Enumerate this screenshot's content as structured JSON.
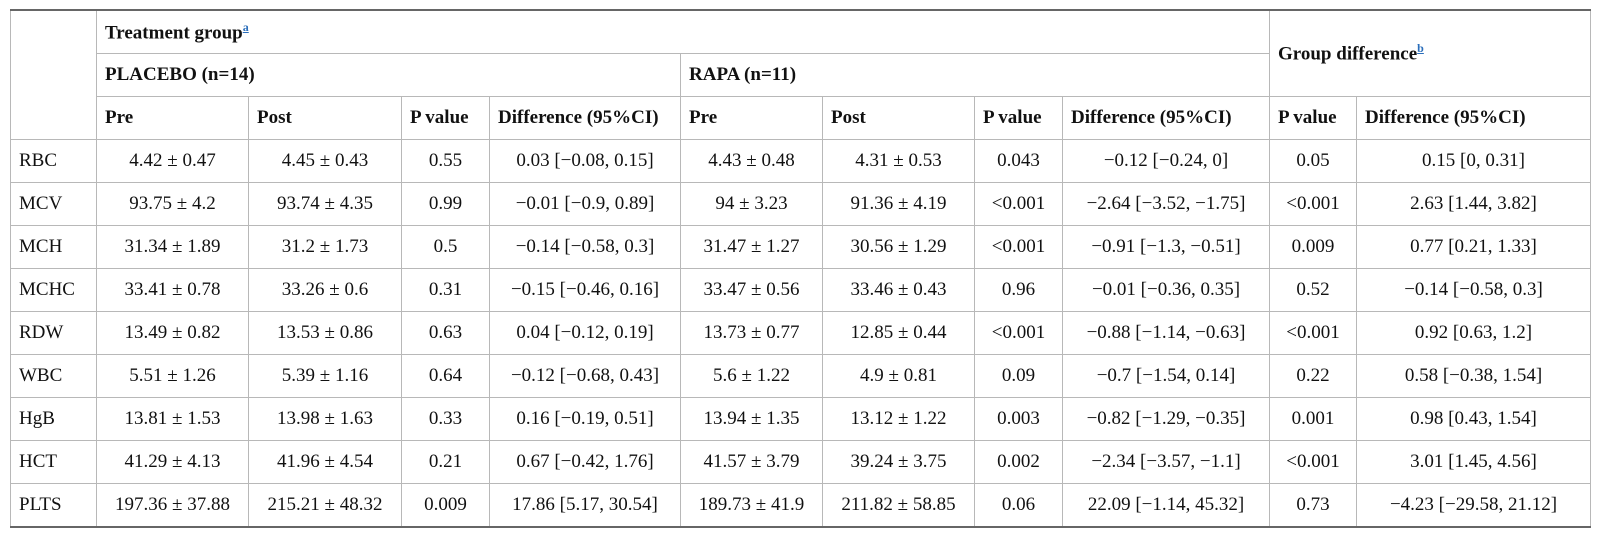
{
  "table": {
    "header": {
      "treatment_group": "Treatment group",
      "treatment_group_fn": "a",
      "group_difference": "Group difference",
      "group_difference_fn": "b",
      "placebo": "PLACEBO (n=14)",
      "rapa": "RAPA (n=11)",
      "columns": [
        "Pre",
        "Post",
        "P value",
        "Difference (95%CI)",
        "Pre",
        "Post",
        "P value",
        "Difference (95%CI)",
        "P value",
        "Difference (95%CI)"
      ]
    },
    "rows": [
      {
        "label": "RBC",
        "cells": [
          "4.42 ± 0.47",
          "4.45 ± 0.43",
          "0.55",
          "0.03 [−0.08, 0.15]",
          "4.43 ± 0.48",
          "4.31 ± 0.53",
          "0.043",
          "−0.12 [−0.24, 0]",
          "0.05",
          "0.15 [0, 0.31]"
        ]
      },
      {
        "label": "MCV",
        "cells": [
          "93.75 ± 4.2",
          "93.74 ± 4.35",
          "0.99",
          "−0.01 [−0.9, 0.89]",
          "94 ± 3.23",
          "91.36 ± 4.19",
          "<0.001",
          "−2.64 [−3.52, −1.75]",
          "<0.001",
          "2.63 [1.44, 3.82]"
        ]
      },
      {
        "label": "MCH",
        "cells": [
          "31.34 ± 1.89",
          "31.2 ± 1.73",
          "0.5",
          "−0.14 [−0.58, 0.3]",
          "31.47 ± 1.27",
          "30.56 ± 1.29",
          "<0.001",
          "−0.91 [−1.3, −0.51]",
          "0.009",
          "0.77 [0.21, 1.33]"
        ]
      },
      {
        "label": "MCHC",
        "cells": [
          "33.41 ± 0.78",
          "33.26 ± 0.6",
          "0.31",
          "−0.15 [−0.46, 0.16]",
          "33.47 ± 0.56",
          "33.46 ± 0.43",
          "0.96",
          "−0.01 [−0.36, 0.35]",
          "0.52",
          "−0.14 [−0.58, 0.3]"
        ]
      },
      {
        "label": "RDW",
        "cells": [
          "13.49 ± 0.82",
          "13.53 ± 0.86",
          "0.63",
          "0.04 [−0.12, 0.19]",
          "13.73 ± 0.77",
          "12.85 ± 0.44",
          "<0.001",
          "−0.88 [−1.14, −0.63]",
          "<0.001",
          "0.92 [0.63, 1.2]"
        ]
      },
      {
        "label": "WBC",
        "cells": [
          "5.51 ± 1.26",
          "5.39 ± 1.16",
          "0.64",
          "−0.12 [−0.68, 0.43]",
          "5.6 ± 1.22",
          "4.9 ± 0.81",
          "0.09",
          "−0.7 [−1.54, 0.14]",
          "0.22",
          "0.58 [−0.38, 1.54]"
        ]
      },
      {
        "label": "HgB",
        "cells": [
          "13.81 ± 1.53",
          "13.98 ± 1.63",
          "0.33",
          "0.16 [−0.19, 0.51]",
          "13.94 ± 1.35",
          "13.12 ± 1.22",
          "0.003",
          "−0.82 [−1.29, −0.35]",
          "0.001",
          "0.98 [0.43, 1.54]"
        ]
      },
      {
        "label": "HCT",
        "cells": [
          "41.29 ± 4.13",
          "41.96 ± 4.54",
          "0.21",
          "0.67 [−0.42, 1.76]",
          "41.57 ± 3.79",
          "39.24 ± 3.75",
          "0.002",
          "−2.34 [−3.57, −1.1]",
          "<0.001",
          "3.01 [1.45, 4.56]"
        ]
      },
      {
        "label": "PLTS",
        "cells": [
          "197.36 ± 37.88",
          "215.21 ± 48.32",
          "0.009",
          "17.86 [5.17, 30.54]",
          "189.73 ± 41.9",
          "211.82 ± 58.85",
          "0.06",
          "22.09 [−1.14, 45.32]",
          "0.73",
          "−4.23 [−29.58, 21.12]"
        ]
      }
    ]
  }
}
